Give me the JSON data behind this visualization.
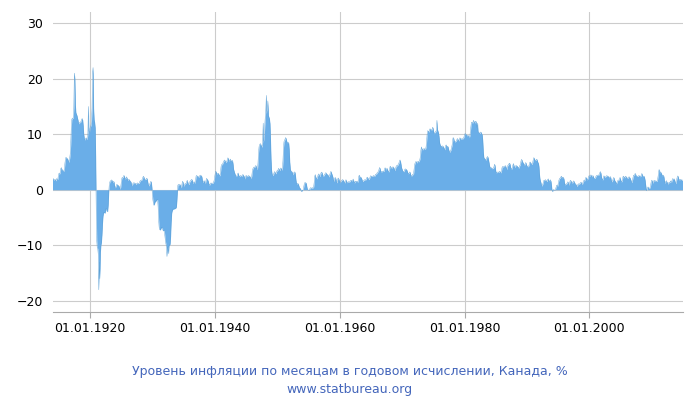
{
  "title_line1": "Уровень инфляции по месяцам в годовом исчислении, Канада, %",
  "title_line2": "www.statbureau.org",
  "fill_color": "#6aaee8",
  "line_color": "#5a9fd4",
  "background_color": "#ffffff",
  "grid_color": "#cccccc",
  "title_color": "#4466bb",
  "yticks": [
    -20,
    -10,
    0,
    10,
    20,
    30
  ],
  "ylim": [
    -22,
    32
  ],
  "xtick_labels": [
    "01.01.1920",
    "01.01.1940",
    "01.01.1960",
    "01.01.1980",
    "01.01.2000"
  ],
  "xtick_years": [
    1920,
    1940,
    1960,
    1980,
    2000
  ],
  "start_year": 1914,
  "start_month": 1,
  "end_year": 2014,
  "end_month": 12
}
